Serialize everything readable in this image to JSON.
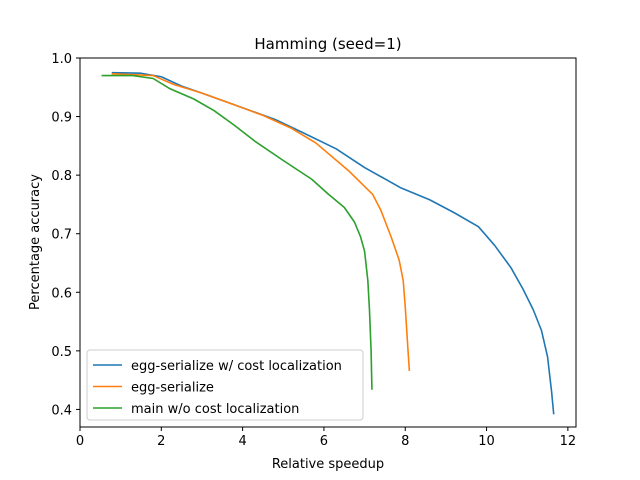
{
  "chart_data": {
    "type": "line",
    "title": "Hamming (seed=1)",
    "xlabel": "Relative speedup",
    "ylabel": "Percentage accuracy",
    "xlim": [
      0,
      12.2
    ],
    "ylim": [
      0.37,
      1.0
    ],
    "xticks": [
      "0",
      "2",
      "4",
      "6",
      "8",
      "10",
      "12"
    ],
    "yticks": [
      "0.4",
      "0.5",
      "0.6",
      "0.7",
      "0.8",
      "0.9",
      "1.0"
    ],
    "grid": false,
    "legend_position": "lower-left",
    "series": [
      {
        "name": "egg-serialize w/ cost localization",
        "color": "#1f77b4",
        "points": [
          [
            0.8,
            0.975
          ],
          [
            1.5,
            0.974
          ],
          [
            2.0,
            0.968
          ],
          [
            2.5,
            0.952
          ],
          [
            3.0,
            0.94
          ],
          [
            3.6,
            0.925
          ],
          [
            4.2,
            0.91
          ],
          [
            4.8,
            0.895
          ],
          [
            5.5,
            0.872
          ],
          [
            6.3,
            0.845
          ],
          [
            7.0,
            0.813
          ],
          [
            7.9,
            0.778
          ],
          [
            8.6,
            0.758
          ],
          [
            9.2,
            0.736
          ],
          [
            9.8,
            0.712
          ],
          [
            10.2,
            0.68
          ],
          [
            10.6,
            0.642
          ],
          [
            10.9,
            0.605
          ],
          [
            11.15,
            0.57
          ],
          [
            11.35,
            0.535
          ],
          [
            11.5,
            0.49
          ],
          [
            11.6,
            0.43
          ],
          [
            11.65,
            0.393
          ]
        ]
      },
      {
        "name": "egg-serialize",
        "color": "#ff7f0e",
        "points": [
          [
            0.8,
            0.973
          ],
          [
            1.8,
            0.97
          ],
          [
            2.3,
            0.955
          ],
          [
            3.0,
            0.94
          ],
          [
            3.8,
            0.92
          ],
          [
            4.5,
            0.902
          ],
          [
            5.2,
            0.88
          ],
          [
            5.8,
            0.855
          ],
          [
            6.6,
            0.808
          ],
          [
            7.2,
            0.767
          ],
          [
            7.4,
            0.74
          ],
          [
            7.65,
            0.695
          ],
          [
            7.85,
            0.655
          ],
          [
            7.95,
            0.62
          ],
          [
            8.0,
            0.575
          ],
          [
            8.05,
            0.52
          ],
          [
            8.1,
            0.467
          ]
        ]
      },
      {
        "name": "main w/o cost localization",
        "color": "#2ca02c",
        "points": [
          [
            0.55,
            0.97
          ],
          [
            1.3,
            0.97
          ],
          [
            1.8,
            0.965
          ],
          [
            2.2,
            0.948
          ],
          [
            2.8,
            0.93
          ],
          [
            3.3,
            0.91
          ],
          [
            3.8,
            0.885
          ],
          [
            4.3,
            0.858
          ],
          [
            5.0,
            0.825
          ],
          [
            5.7,
            0.793
          ],
          [
            6.1,
            0.768
          ],
          [
            6.5,
            0.745
          ],
          [
            6.75,
            0.72
          ],
          [
            6.9,
            0.695
          ],
          [
            7.0,
            0.67
          ],
          [
            7.08,
            0.62
          ],
          [
            7.12,
            0.57
          ],
          [
            7.16,
            0.5
          ],
          [
            7.18,
            0.435
          ]
        ]
      }
    ]
  }
}
